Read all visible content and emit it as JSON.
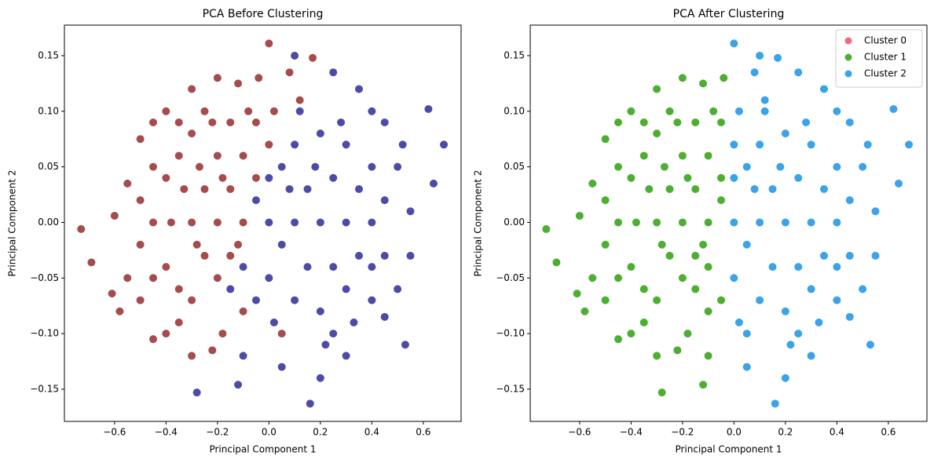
{
  "chart_data": [
    {
      "type": "scatter",
      "title": "PCA Before Clustering",
      "x_label": "Principal Component 1",
      "y_label": "Principal Component 2",
      "xlim": [
        -0.795,
        0.747
      ],
      "ylim": [
        -0.179,
        0.1775
      ],
      "xticks": [
        {
          "value": -0.6,
          "label": "−0.6"
        },
        {
          "value": -0.4,
          "label": "−0.4"
        },
        {
          "value": -0.2,
          "label": "−0.2"
        },
        {
          "value": 0,
          "label": "0.0"
        },
        0.2,
        0.4,
        0.6
      ],
      "yticks": [
        {
          "value": -0.15,
          "label": "−0.15"
        },
        {
          "value": -0.1,
          "label": "−0.10"
        },
        {
          "value": -0.05,
          "label": "−0.05"
        },
        {
          "value": 0,
          "label": "0.00"
        },
        0.05,
        {
          "value": 0.1,
          "label": "0.10"
        },
        0.15
      ],
      "grid": false,
      "alpha": 0.7,
      "series": [
        {
          "color": "#800000",
          "x": [
            -0.73,
            -0.69,
            -0.61,
            -0.58,
            -0.6,
            -0.55,
            -0.5,
            -0.45,
            -0.4,
            -0.3,
            -0.2,
            -0.12,
            0.0,
            0.08,
            0.17,
            -0.04,
            0.12,
            -0.45,
            -0.4,
            -0.3,
            -0.22,
            -0.55,
            -0.5,
            -0.35,
            -0.18,
            -0.1,
            0.05,
            -0.45,
            -0.4,
            -0.4,
            -0.35,
            -0.35,
            -0.3,
            -0.3,
            -0.3,
            -0.25,
            -0.25,
            -0.2,
            -0.2,
            -0.2,
            -0.15,
            -0.15,
            -0.15,
            -0.1,
            -0.1,
            -0.05,
            -0.05,
            0.0,
            -0.45,
            -0.45,
            -0.38,
            -0.33,
            -0.28,
            -0.22,
            -0.12,
            -0.08,
            0.02,
            -0.5,
            -0.5,
            -0.25,
            -0.35,
            -0.27,
            -0.18
          ],
          "values": [
            -0.006,
            -0.036,
            -0.064,
            -0.08,
            0.006,
            0.035,
            0.075,
            0.09,
            0.1,
            0.12,
            0.13,
            0.125,
            0.161,
            0.135,
            0.148,
            0.13,
            0.11,
            -0.105,
            -0.1,
            -0.12,
            -0.115,
            -0.05,
            -0.07,
            -0.09,
            -0.1,
            -0.08,
            -0.1,
            0.0,
            0.04,
            -0.04,
            0.06,
            -0.06,
            0.0,
            0.08,
            -0.07,
            0.03,
            -0.03,
            0.06,
            -0.05,
            0.0,
            0.09,
            0.03,
            -0.03,
            0.06,
            0.0,
            0.09,
            0.04,
            0.07,
            0.05,
            -0.05,
            0.0,
            0.03,
            -0.02,
            0.09,
            -0.02,
            0.1,
            0.1,
            0.02,
            -0.02,
            0.1,
            0.09,
            0.05,
            0.04
          ]
        },
        {
          "color": "#000080",
          "x": [
            0.68,
            0.64,
            0.62,
            0.53,
            0.55,
            0.5,
            0.45,
            0.4,
            0.35,
            0.25,
            0.1,
            0.16,
            -0.28,
            -0.12,
            0.05,
            0.2,
            0.3,
            0.45,
            0.5,
            0.55,
            0.52,
            -0.1,
            0.25,
            0.4,
            -0.1,
            -0.05,
            0.0,
            0.0,
            0.0,
            0.05,
            0.05,
            0.1,
            0.1,
            0.1,
            0.15,
            0.15,
            0.2,
            0.2,
            0.2,
            0.25,
            0.25,
            0.3,
            0.3,
            0.3,
            0.35,
            0.35,
            0.4,
            0.4,
            0.4,
            0.45,
            -0.05,
            -0.15,
            0.12,
            0.22,
            0.02,
            0.08,
            0.18,
            0.28,
            0.33,
            0.45
          ],
          "values": [
            0.07,
            0.035,
            0.102,
            -0.11,
            0.01,
            -0.06,
            -0.085,
            0.1,
            0.12,
            0.135,
            0.15,
            -0.163,
            -0.153,
            -0.146,
            -0.13,
            -0.14,
            -0.12,
            0.09,
            0.05,
            -0.03,
            0.07,
            -0.12,
            -0.1,
            -0.07,
            -0.04,
            -0.07,
            -0.05,
            0.0,
            0.04,
            -0.02,
            0.05,
            0.0,
            0.07,
            -0.07,
            0.03,
            -0.04,
            0.0,
            0.08,
            -0.08,
            0.04,
            -0.04,
            0.0,
            0.07,
            -0.06,
            0.03,
            -0.03,
            0.0,
            0.05,
            -0.04,
            0.02,
            0.02,
            -0.06,
            0.1,
            -0.11,
            -0.09,
            0.03,
            0.05,
            0.09,
            -0.09,
            -0.03
          ]
        }
      ]
    },
    {
      "type": "scatter",
      "title": "PCA After Clustering",
      "x_label": "Principal Component 1",
      "y_label": "Principal Component 2",
      "xlim": [
        -0.792,
        0.75
      ],
      "ylim": [
        -0.179,
        0.1775
      ],
      "xticks": [
        {
          "value": -0.6,
          "label": "−0.6"
        },
        {
          "value": -0.4,
          "label": "−0.4"
        },
        {
          "value": -0.2,
          "label": "−0.2"
        },
        {
          "value": 0,
          "label": "0.0"
        },
        0.2,
        0.4,
        0.6
      ],
      "yticks": [
        {
          "value": -0.15,
          "label": "−0.15"
        },
        {
          "value": -0.1,
          "label": "−0.10"
        },
        {
          "value": -0.05,
          "label": "−0.05"
        },
        {
          "value": 0,
          "label": "0.00"
        },
        0.05,
        {
          "value": 0.1,
          "label": "0.10"
        },
        0.15
      ],
      "grid": false,
      "alpha": 1,
      "legend": "upper right",
      "series": [
        {
          "name": "Cluster 0",
          "color": "#f06b81",
          "x": [],
          "values": []
        },
        {
          "name": "Cluster 1",
          "color": "#4daf32",
          "x": [
            -0.73,
            -0.69,
            -0.61,
            -0.58,
            -0.6,
            -0.55,
            -0.5,
            -0.45,
            -0.4,
            -0.3,
            -0.2,
            -0.12,
            -0.04,
            -0.45,
            -0.4,
            -0.3,
            -0.22,
            -0.55,
            -0.5,
            -0.35,
            -0.18,
            -0.1,
            -0.45,
            -0.4,
            -0.4,
            -0.35,
            -0.35,
            -0.3,
            -0.3,
            -0.3,
            -0.25,
            -0.25,
            -0.2,
            -0.2,
            -0.2,
            -0.15,
            -0.15,
            -0.15,
            -0.1,
            -0.1,
            -0.05,
            -0.05,
            -0.45,
            -0.45,
            -0.38,
            -0.33,
            -0.28,
            -0.22,
            -0.12,
            -0.08,
            -0.5,
            -0.5,
            -0.25,
            -0.35,
            -0.27,
            -0.18,
            -0.28,
            -0.12,
            -0.1,
            -0.1,
            -0.05,
            -0.05,
            -0.15
          ],
          "values": [
            -0.006,
            -0.036,
            -0.064,
            -0.08,
            0.006,
            0.035,
            0.075,
            0.09,
            0.1,
            0.12,
            0.13,
            0.125,
            0.13,
            -0.105,
            -0.1,
            -0.12,
            -0.115,
            -0.05,
            -0.07,
            -0.09,
            -0.1,
            -0.08,
            0.0,
            0.04,
            -0.04,
            0.06,
            -0.06,
            0.0,
            0.08,
            -0.07,
            0.03,
            -0.03,
            0.06,
            -0.05,
            0.0,
            0.09,
            0.03,
            -0.03,
            0.06,
            0.0,
            0.09,
            0.04,
            0.05,
            -0.05,
            0.0,
            0.03,
            -0.02,
            0.09,
            -0.02,
            0.1,
            0.02,
            -0.02,
            0.1,
            0.09,
            0.05,
            0.04,
            -0.153,
            -0.146,
            -0.12,
            -0.04,
            -0.07,
            0.02,
            -0.06
          ]
        },
        {
          "name": "Cluster 2",
          "color": "#3ba3e8",
          "x": [
            0.0,
            0.08,
            0.17,
            0.12,
            0.05,
            0.0,
            0.02,
            0.68,
            0.64,
            0.62,
            0.53,
            0.55,
            0.5,
            0.45,
            0.4,
            0.35,
            0.25,
            0.1,
            0.16,
            0.05,
            0.2,
            0.3,
            0.45,
            0.5,
            0.55,
            0.52,
            0.25,
            0.4,
            0.0,
            0.0,
            0.0,
            0.05,
            0.05,
            0.1,
            0.1,
            0.1,
            0.15,
            0.15,
            0.2,
            0.2,
            0.2,
            0.25,
            0.25,
            0.3,
            0.3,
            0.3,
            0.35,
            0.35,
            0.4,
            0.4,
            0.4,
            0.45,
            0.12,
            0.22,
            0.02,
            0.08,
            0.18,
            0.28,
            0.33,
            0.45
          ],
          "values": [
            0.161,
            0.135,
            0.148,
            0.11,
            -0.1,
            0.07,
            0.1,
            0.07,
            0.035,
            0.102,
            -0.11,
            0.01,
            -0.06,
            -0.085,
            0.1,
            0.12,
            0.135,
            0.15,
            -0.163,
            -0.13,
            -0.14,
            -0.12,
            0.09,
            0.05,
            -0.03,
            0.07,
            -0.1,
            -0.07,
            -0.05,
            0.0,
            0.04,
            -0.02,
            0.05,
            0.0,
            0.07,
            -0.07,
            0.03,
            -0.04,
            0.0,
            0.08,
            -0.08,
            0.04,
            -0.04,
            0.0,
            0.07,
            -0.06,
            0.03,
            -0.03,
            0.0,
            0.05,
            -0.04,
            0.02,
            0.1,
            -0.11,
            -0.09,
            0.03,
            0.05,
            0.09,
            -0.09,
            -0.03
          ]
        }
      ]
    }
  ]
}
